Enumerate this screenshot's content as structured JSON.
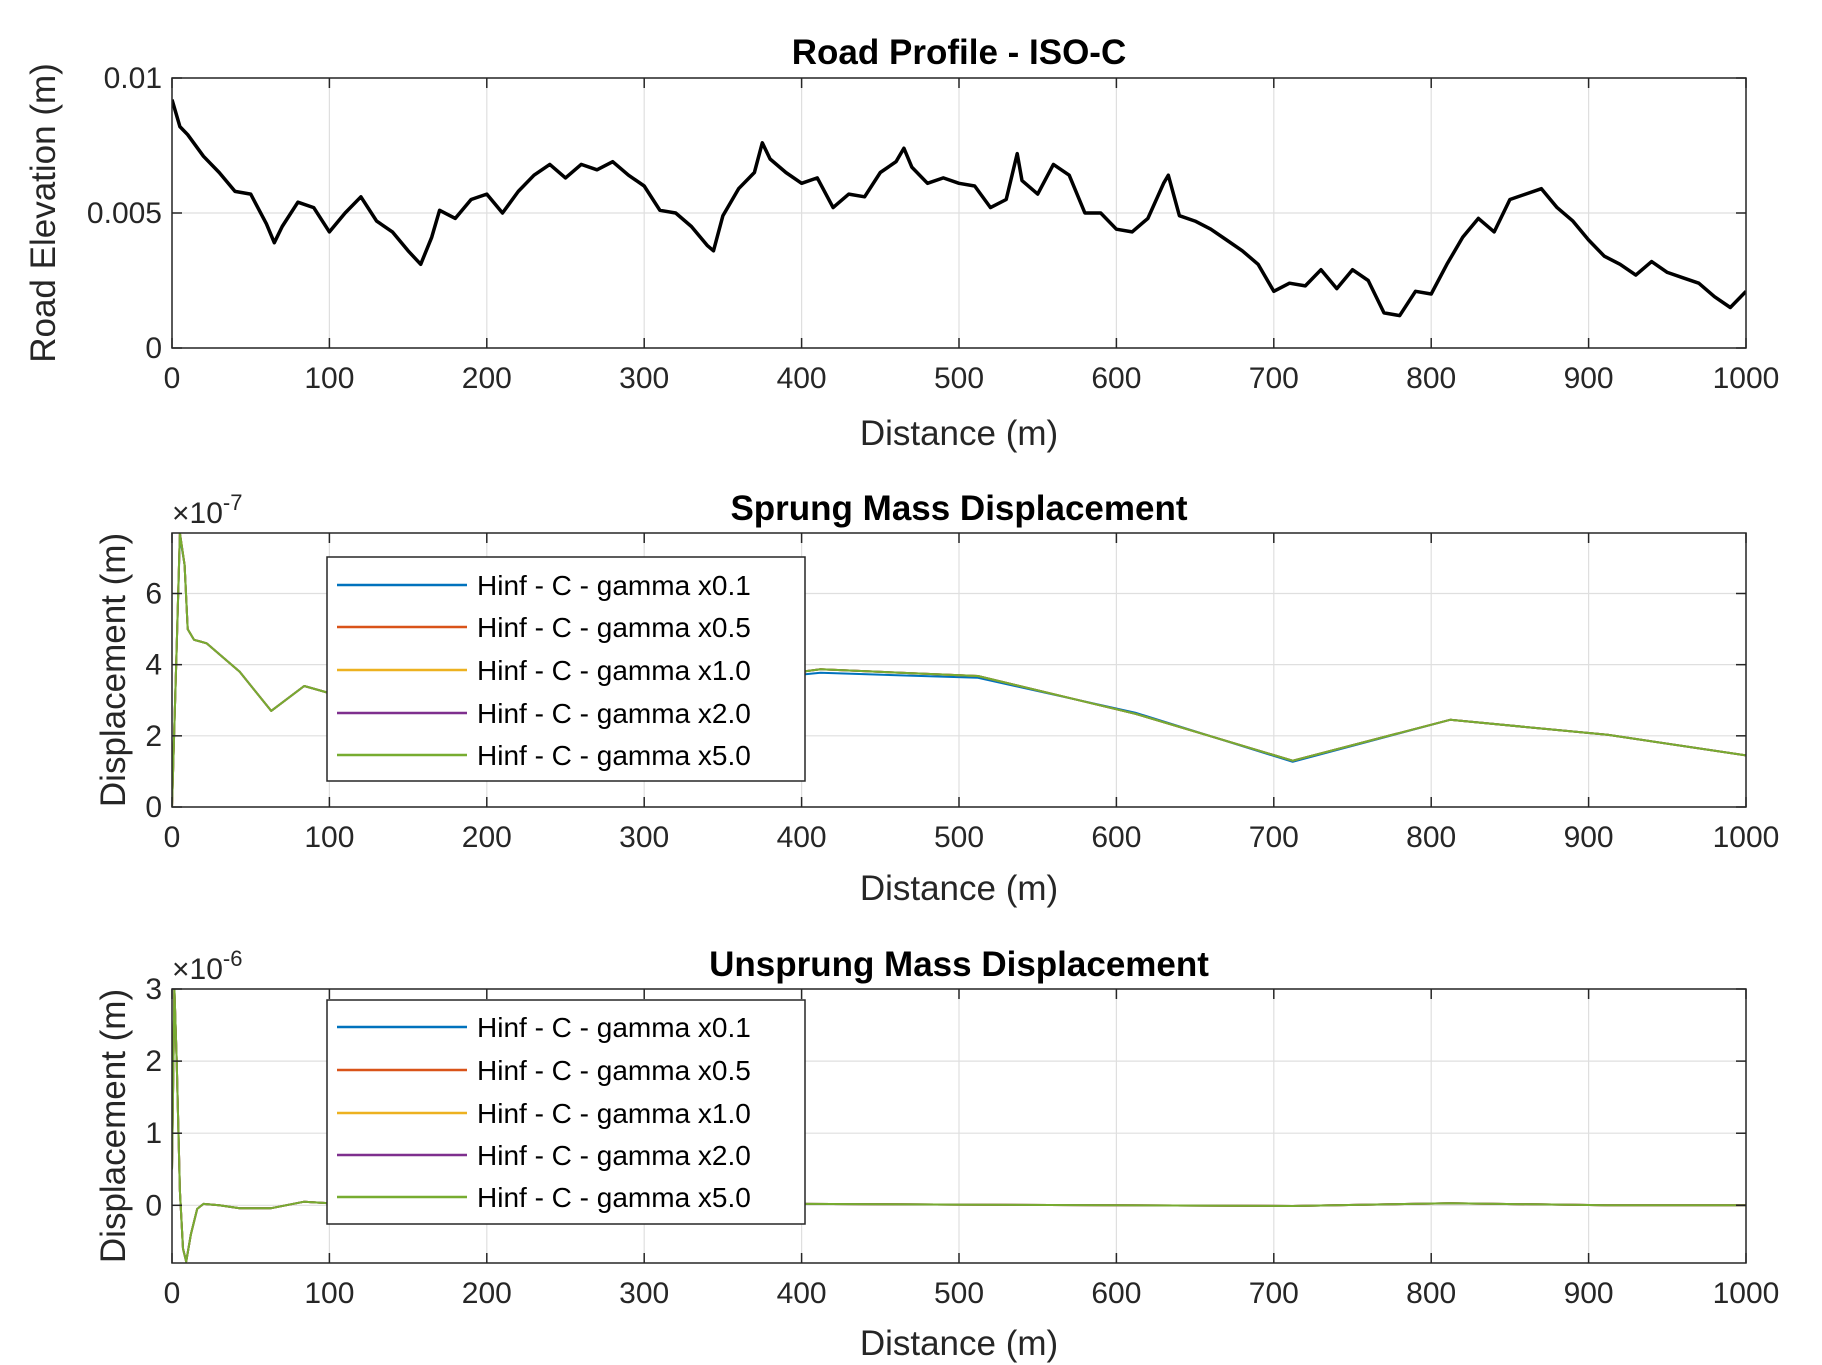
{
  "chart_data": [
    {
      "type": "line",
      "title": "Road Profile - ISO-C",
      "xlabel": "Distance (m)",
      "ylabel": "Road Elevation (m)",
      "xlim": [
        0,
        1000
      ],
      "ylim": [
        0,
        0.01
      ],
      "x_ticks": [
        0,
        100,
        200,
        300,
        400,
        500,
        600,
        700,
        800,
        900,
        1000
      ],
      "x_tick_labels": [
        "0",
        "100",
        "200",
        "300",
        "400",
        "500",
        "600",
        "700",
        "800",
        "900",
        "1000"
      ],
      "y_ticks": [
        0,
        0.005,
        0.01
      ],
      "y_tick_labels": [
        "0",
        "0.005",
        "0.01"
      ],
      "grid": true,
      "series": [
        {
          "color": "#000000",
          "x": [
            0,
            5,
            10,
            20,
            30,
            40,
            50,
            60,
            65,
            70,
            80,
            90,
            100,
            110,
            120,
            130,
            140,
            150,
            158,
            165,
            170,
            180,
            190,
            200,
            210,
            220,
            230,
            240,
            250,
            260,
            270,
            280,
            290,
            300,
            310,
            320,
            330,
            340,
            344,
            350,
            360,
            370,
            375,
            380,
            390,
            400,
            410,
            420,
            430,
            440,
            450,
            460,
            465,
            470,
            480,
            490,
            500,
            510,
            520,
            530,
            537,
            540,
            550,
            560,
            570,
            580,
            590,
            600,
            610,
            620,
            630,
            633,
            640,
            650,
            660,
            670,
            680,
            690,
            700,
            710,
            720,
            730,
            740,
            750,
            760,
            770,
            780,
            790,
            800,
            810,
            820,
            830,
            840,
            850,
            860,
            870,
            880,
            890,
            900,
            910,
            920,
            930,
            940,
            950,
            960,
            970,
            980,
            990,
            1000
          ],
          "y": [
            0.0092,
            0.0082,
            0.0079,
            0.0071,
            0.0065,
            0.0058,
            0.0057,
            0.0046,
            0.0039,
            0.0045,
            0.0054,
            0.0052,
            0.0043,
            0.005,
            0.0056,
            0.0047,
            0.0043,
            0.0036,
            0.0031,
            0.0041,
            0.0051,
            0.0048,
            0.0055,
            0.0057,
            0.005,
            0.0058,
            0.0064,
            0.0068,
            0.0063,
            0.0068,
            0.0066,
            0.0069,
            0.0064,
            0.006,
            0.0051,
            0.005,
            0.0045,
            0.0038,
            0.0036,
            0.0049,
            0.0059,
            0.0065,
            0.0076,
            0.007,
            0.0065,
            0.0061,
            0.0063,
            0.0052,
            0.0057,
            0.0056,
            0.0065,
            0.0069,
            0.0074,
            0.0067,
            0.0061,
            0.0063,
            0.0061,
            0.006,
            0.0052,
            0.0055,
            0.0072,
            0.0062,
            0.0057,
            0.0068,
            0.0064,
            0.005,
            0.005,
            0.0044,
            0.0043,
            0.0048,
            0.0061,
            0.0064,
            0.0049,
            0.0047,
            0.0044,
            0.004,
            0.0036,
            0.0031,
            0.0021,
            0.0024,
            0.0023,
            0.0029,
            0.0022,
            0.0029,
            0.0025,
            0.0013,
            0.0012,
            0.0021,
            0.002,
            0.0031,
            0.0041,
            0.0048,
            0.0043,
            0.0055,
            0.0057,
            0.0059,
            0.0052,
            0.0047,
            0.004,
            0.0034,
            0.0031,
            0.0027,
            0.0032,
            0.0028,
            0.0026,
            0.0024,
            0.0019,
            0.0015,
            0.0021
          ]
        }
      ]
    },
    {
      "type": "line",
      "title": "Sprung Mass Displacement",
      "xlabel": "Distance (m)",
      "ylabel": "Displacement (m)",
      "y_exponent_label": "×10",
      "y_exponent": "-7",
      "xlim": [
        0,
        1000
      ],
      "ylim": [
        0,
        7.7
      ],
      "x_ticks": [
        0,
        100,
        200,
        300,
        400,
        500,
        600,
        700,
        800,
        900,
        1000
      ],
      "x_tick_labels": [
        "0",
        "100",
        "200",
        "300",
        "400",
        "500",
        "600",
        "700",
        "800",
        "900",
        "1000"
      ],
      "y_ticks": [
        0,
        2,
        4,
        6
      ],
      "y_tick_labels": [
        "0",
        "2",
        "4",
        "6"
      ],
      "grid": true,
      "legend_position": "top-left",
      "series": [
        {
          "name": "Hinf - C - gamma x0.1",
          "color": "#0072BD",
          "x": [
            0,
            3,
            5,
            8,
            10,
            14,
            18,
            22,
            43,
            63,
            84,
            100,
            200,
            300,
            350,
            400,
            412,
            512,
            612,
            712,
            812,
            912,
            1000
          ],
          "y": [
            0,
            4.5,
            7.6,
            6.8,
            5.0,
            4.7,
            4.65,
            4.6,
            3.8,
            2.7,
            3.4,
            3.2,
            3.4,
            3.7,
            3.8,
            3.72,
            3.77,
            3.63,
            2.65,
            1.27,
            2.45,
            2.03,
            1.45
          ]
        },
        {
          "name": "Hinf - C - gamma x0.5",
          "color": "#D95319",
          "x": [
            0,
            3,
            5,
            8,
            10,
            14,
            18,
            22,
            43,
            63,
            84,
            100,
            200,
            300,
            350,
            400,
            412,
            512,
            612,
            712,
            812,
            912,
            1000
          ],
          "y": [
            0,
            4.5,
            7.7,
            6.8,
            5.0,
            4.7,
            4.65,
            4.6,
            3.8,
            2.7,
            3.4,
            3.2,
            3.4,
            3.7,
            3.8,
            3.8,
            3.87,
            3.68,
            2.62,
            1.3,
            2.45,
            2.03,
            1.45
          ]
        },
        {
          "name": "Hinf - C - gamma x1.0",
          "color": "#EDB120",
          "x": [
            0,
            3,
            5,
            8,
            10,
            14,
            18,
            22,
            43,
            63,
            84,
            100,
            200,
            300,
            350,
            400,
            412,
            512,
            612,
            712,
            812,
            912,
            1000
          ],
          "y": [
            0,
            4.5,
            7.7,
            6.8,
            5.0,
            4.7,
            4.65,
            4.6,
            3.8,
            2.7,
            3.4,
            3.2,
            3.4,
            3.7,
            3.8,
            3.8,
            3.87,
            3.68,
            2.62,
            1.3,
            2.45,
            2.03,
            1.45
          ]
        },
        {
          "name": "Hinf - C - gamma x2.0",
          "color": "#7E2F8E",
          "x": [
            0,
            3,
            5,
            8,
            10,
            14,
            18,
            22,
            43,
            63,
            84,
            100,
            200,
            300,
            350,
            400,
            412,
            512,
            612,
            712,
            812,
            912,
            1000
          ],
          "y": [
            0,
            4.5,
            7.7,
            6.8,
            5.0,
            4.7,
            4.65,
            4.6,
            3.8,
            2.7,
            3.4,
            3.2,
            3.4,
            3.7,
            3.8,
            3.8,
            3.87,
            3.68,
            2.62,
            1.3,
            2.45,
            2.03,
            1.45
          ]
        },
        {
          "name": "Hinf - C - gamma x5.0",
          "color": "#77AC30",
          "x": [
            0,
            3,
            5,
            8,
            10,
            14,
            18,
            22,
            43,
            63,
            84,
            100,
            200,
            300,
            350,
            400,
            412,
            512,
            612,
            712,
            812,
            912,
            1000
          ],
          "y": [
            0,
            4.5,
            7.7,
            6.8,
            5.0,
            4.7,
            4.65,
            4.6,
            3.8,
            2.7,
            3.4,
            3.2,
            3.4,
            3.7,
            3.8,
            3.8,
            3.87,
            3.68,
            2.62,
            1.3,
            2.45,
            2.03,
            1.45
          ]
        }
      ]
    },
    {
      "type": "line",
      "title": "Unsprung Mass Displacement",
      "xlabel": "Distance (m)",
      "ylabel": "Displacement (m)",
      "y_exponent_label": "×10",
      "y_exponent": "-6",
      "xlim": [
        0,
        1000
      ],
      "ylim": [
        -0.8,
        3
      ],
      "x_ticks": [
        0,
        100,
        200,
        300,
        400,
        500,
        600,
        700,
        800,
        900,
        1000
      ],
      "x_tick_labels": [
        "0",
        "100",
        "200",
        "300",
        "400",
        "500",
        "600",
        "700",
        "800",
        "900",
        "1000"
      ],
      "y_ticks": [
        0,
        1,
        2,
        3
      ],
      "y_tick_labels": [
        "0",
        "1",
        "2",
        "3"
      ],
      "grid": true,
      "legend_position": "top-left",
      "series": [
        {
          "name": "Hinf - C - gamma x0.1",
          "color": "#0072BD",
          "x": [
            0,
            1.5,
            3,
            5,
            7,
            9,
            12,
            16,
            20,
            30,
            43,
            63,
            84,
            100,
            200,
            300,
            400,
            500,
            600,
            712,
            812,
            912,
            1000
          ],
          "y": [
            0.5,
            3.0,
            2.0,
            0.2,
            -0.6,
            -0.78,
            -0.4,
            -0.05,
            0.02,
            0.0,
            -0.04,
            -0.04,
            0.05,
            0.03,
            0.01,
            0.01,
            0.02,
            0.01,
            0.0,
            -0.01,
            0.03,
            0.0,
            0.0
          ]
        },
        {
          "name": "Hinf - C - gamma x0.5",
          "color": "#D95319",
          "x": [
            0,
            1.5,
            3,
            5,
            7,
            9,
            12,
            16,
            20,
            30,
            43,
            63,
            84,
            100,
            200,
            300,
            400,
            500,
            600,
            712,
            812,
            912,
            1000
          ],
          "y": [
            0.5,
            3.0,
            2.0,
            0.2,
            -0.6,
            -0.78,
            -0.4,
            -0.05,
            0.02,
            0.0,
            -0.04,
            -0.04,
            0.05,
            0.03,
            0.01,
            0.01,
            0.02,
            0.01,
            0.0,
            -0.01,
            0.03,
            0.0,
            0.0
          ]
        },
        {
          "name": "Hinf - C - gamma x1.0",
          "color": "#EDB120",
          "x": [
            0,
            1.5,
            3,
            5,
            7,
            9,
            12,
            16,
            20,
            30,
            43,
            63,
            84,
            100,
            200,
            300,
            400,
            500,
            600,
            712,
            812,
            912,
            1000
          ],
          "y": [
            0.5,
            3.0,
            2.0,
            0.2,
            -0.6,
            -0.78,
            -0.4,
            -0.05,
            0.02,
            0.0,
            -0.04,
            -0.04,
            0.05,
            0.03,
            0.01,
            0.01,
            0.02,
            0.01,
            0.0,
            -0.01,
            0.03,
            0.0,
            0.0
          ]
        },
        {
          "name": "Hinf - C - gamma x2.0",
          "color": "#7E2F8E",
          "x": [
            0,
            1.5,
            3,
            5,
            7,
            9,
            12,
            16,
            20,
            30,
            43,
            63,
            84,
            100,
            200,
            300,
            400,
            500,
            600,
            712,
            812,
            912,
            1000
          ],
          "y": [
            0.5,
            3.0,
            2.0,
            0.2,
            -0.6,
            -0.78,
            -0.4,
            -0.05,
            0.02,
            0.0,
            -0.04,
            -0.04,
            0.05,
            0.03,
            0.01,
            0.01,
            0.02,
            0.01,
            0.0,
            -0.01,
            0.03,
            0.0,
            0.0
          ]
        },
        {
          "name": "Hinf - C - gamma x5.0",
          "color": "#77AC30",
          "x": [
            0,
            1.5,
            3,
            5,
            7,
            9,
            12,
            16,
            20,
            30,
            43,
            63,
            84,
            100,
            200,
            300,
            400,
            500,
            600,
            712,
            812,
            912,
            1000
          ],
          "y": [
            0.5,
            3.0,
            2.0,
            0.2,
            -0.6,
            -0.78,
            -0.4,
            -0.05,
            0.02,
            0.0,
            -0.04,
            -0.04,
            0.05,
            0.03,
            0.01,
            0.01,
            0.02,
            0.01,
            0.0,
            -0.01,
            0.03,
            0.0,
            0.0
          ]
        }
      ]
    }
  ]
}
